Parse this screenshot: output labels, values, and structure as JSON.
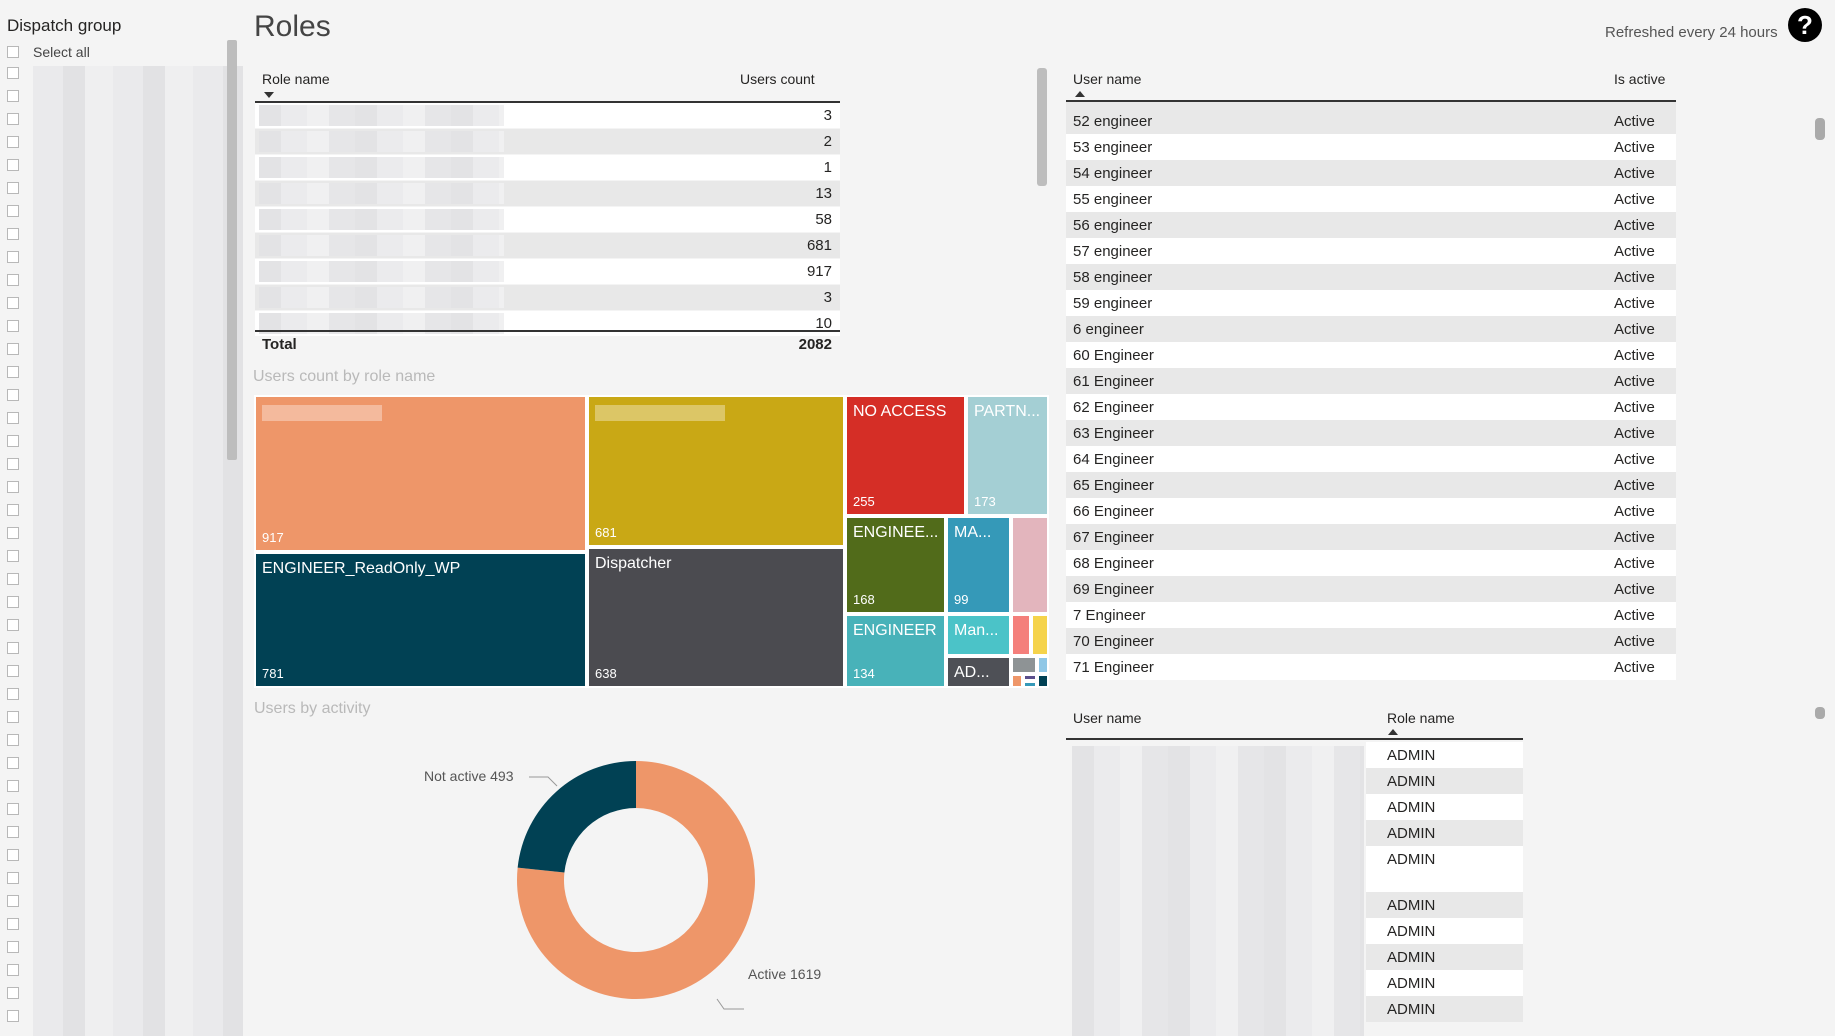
{
  "slicer": {
    "title": "Dispatch group",
    "select_all": "Select all"
  },
  "header": {
    "title": "Roles",
    "refresh_text": "Refreshed every 24 hours",
    "help_glyph": "?"
  },
  "roles_table": {
    "col_role": "Role name",
    "col_count": "Users count",
    "counts": [
      "3",
      "2",
      "1",
      "13",
      "58",
      "681",
      "917",
      "3",
      "10"
    ],
    "total_label": "Total",
    "total_value": "2082"
  },
  "treemap": {
    "title": "Users count by role name",
    "tiles": [
      {
        "label": "",
        "value": "917",
        "color": "#ee9669"
      },
      {
        "label": "ENGINEER_ReadOnly_WP",
        "value": "781",
        "color": "#014154"
      },
      {
        "label": "",
        "value": "681",
        "color": "#c9a815"
      },
      {
        "label": "Dispatcher",
        "value": "638",
        "color": "#4b4b50"
      },
      {
        "label": "NO ACCESS",
        "value": "255",
        "color": "#d52e26"
      },
      {
        "label": "PARTN...",
        "value": "173",
        "color": "#a4cfd4"
      },
      {
        "label": "ENGINEE...",
        "value": "168",
        "color": "#516b1a"
      },
      {
        "label": "MA...",
        "value": "99",
        "color": "#3599b8"
      },
      {
        "label": "ENGINEER",
        "value": "134",
        "color": "#48b2b9"
      },
      {
        "label": "Man...",
        "value": "",
        "color": "#4bc3c8"
      },
      {
        "label": "AD...",
        "value": "",
        "color": "#4e5056"
      }
    ]
  },
  "donut": {
    "title": "Users by activity",
    "not_active_label": "Not active 493",
    "active_label": "Active 1619",
    "not_active_value": 493,
    "active_value": 1619,
    "active_color": "#ee9669",
    "not_active_color": "#014154"
  },
  "users_table": {
    "col_user": "User name",
    "col_active": "Is active",
    "rows": [
      {
        "name": "52 engineer",
        "status": "Active"
      },
      {
        "name": "53 engineer",
        "status": "Active"
      },
      {
        "name": "54 engineer",
        "status": "Active"
      },
      {
        "name": "55 engineer",
        "status": "Active"
      },
      {
        "name": "56 engineer",
        "status": "Active"
      },
      {
        "name": "57 engineer",
        "status": "Active"
      },
      {
        "name": "58 engineer",
        "status": "Active"
      },
      {
        "name": "59 engineer",
        "status": "Active"
      },
      {
        "name": "6 engineer",
        "status": "Active"
      },
      {
        "name": "60 Engineer",
        "status": "Active"
      },
      {
        "name": "61 Engineer",
        "status": "Active"
      },
      {
        "name": "62 Engineer",
        "status": "Active"
      },
      {
        "name": "63 Engineer",
        "status": "Active"
      },
      {
        "name": "64 Engineer",
        "status": "Active"
      },
      {
        "name": "65 Engineer",
        "status": "Active"
      },
      {
        "name": "66 Engineer",
        "status": "Active"
      },
      {
        "name": "67 Engineer",
        "status": "Active"
      },
      {
        "name": "68 Engineer",
        "status": "Active"
      },
      {
        "name": "69 Engineer",
        "status": "Active"
      },
      {
        "name": "7 Engineer",
        "status": "Active"
      },
      {
        "name": "70 Engineer",
        "status": "Active"
      },
      {
        "name": "71 Engineer",
        "status": "Active"
      }
    ]
  },
  "user_roles_table": {
    "col_user": "User name",
    "col_role": "Role name",
    "roles": [
      "ADMIN",
      "ADMIN",
      "ADMIN",
      "ADMIN",
      "ADMIN",
      "ADMIN",
      "ADMIN",
      "ADMIN",
      "ADMIN",
      "ADMIN"
    ]
  }
}
